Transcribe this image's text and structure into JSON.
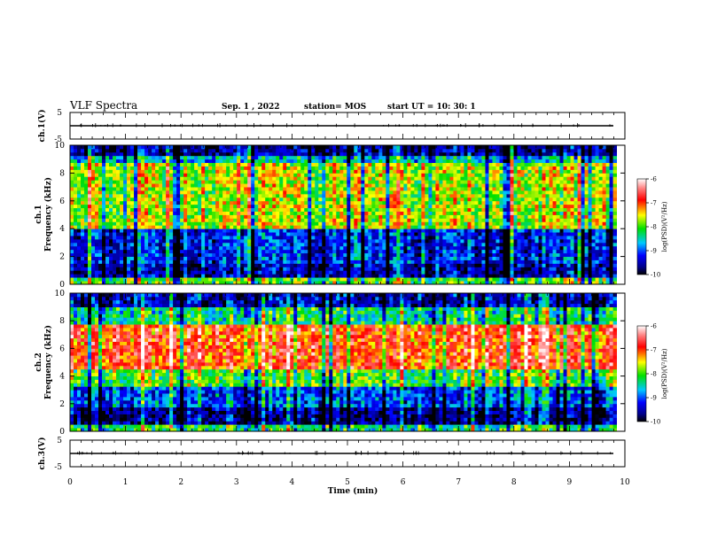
{
  "header": {
    "title": "VLF Spectra",
    "date": "Sep. 1 , 2022",
    "station": "station= MOS",
    "start": "start  UT =   10: 30: 1"
  },
  "chart_data": [
    {
      "type": "line",
      "panel": "ch1-waveform",
      "ylabel": "ch.1(V)",
      "ylim": [
        -5,
        5
      ],
      "yticks": [
        "5",
        "-5"
      ],
      "x": [
        0,
        10
      ],
      "values": [
        0,
        0
      ]
    },
    {
      "type": "heatmap",
      "panel": "ch1-spectrogram",
      "ylabel_line1": "ch.1",
      "ylabel_line2": "Frequency (kHz)",
      "ylim": [
        0,
        10
      ],
      "yticks": [
        "0",
        "2",
        "4",
        "6",
        "8",
        "10"
      ],
      "xlim": [
        0,
        9.85
      ],
      "colorbar": {
        "label": "log(PSD)(V²/Hz)",
        "range": [
          -10,
          -6
        ],
        "ticks": [
          "-6",
          "-7",
          "-8",
          "-9",
          "-10"
        ]
      },
      "bands": [
        {
          "f_low": 0,
          "f_high": 0.4,
          "log_psd": -8.0
        },
        {
          "f_low": 0.4,
          "f_high": 1.6,
          "log_psd": -9.5
        },
        {
          "f_low": 1.6,
          "f_high": 4.0,
          "log_psd": -9.2
        },
        {
          "f_low": 4.0,
          "f_high": 8.7,
          "log_psd": -7.7
        },
        {
          "f_low": 8.7,
          "f_high": 9.2,
          "log_psd": -8.6
        },
        {
          "f_low": 9.2,
          "f_high": 10,
          "log_psd": -9.6
        }
      ]
    },
    {
      "type": "heatmap",
      "panel": "ch2-spectrogram",
      "ylabel_line1": "ch.2",
      "ylabel_line2": "Frequency (kHz)",
      "ylim": [
        0,
        10
      ],
      "yticks": [
        "0",
        "2",
        "4",
        "6",
        "8",
        "10"
      ],
      "xlim": [
        0,
        9.85
      ],
      "colorbar": {
        "label": "log(PSD)(V²/Hz)",
        "range": [
          -10,
          -6
        ],
        "ticks": [
          "-6",
          "-7",
          "-8",
          "-9",
          "-10"
        ]
      },
      "bands": [
        {
          "f_low": 0,
          "f_high": 0.4,
          "log_psd": -8.2
        },
        {
          "f_low": 0.4,
          "f_high": 1.8,
          "log_psd": -9.6
        },
        {
          "f_low": 1.8,
          "f_high": 3.2,
          "log_psd": -9.0
        },
        {
          "f_low": 3.2,
          "f_high": 4.5,
          "log_psd": -8.0
        },
        {
          "f_low": 4.5,
          "f_high": 7.8,
          "log_psd": -6.9
        },
        {
          "f_low": 7.8,
          "f_high": 9.0,
          "log_psd": -8.3
        },
        {
          "f_low": 9.0,
          "f_high": 10,
          "log_psd": -9.4
        }
      ]
    },
    {
      "type": "line",
      "panel": "ch3-waveform",
      "ylabel": "ch.3(V)",
      "ylim": [
        -5,
        5
      ],
      "yticks": [
        "5",
        "-5"
      ],
      "x": [
        0,
        10
      ],
      "values": [
        0,
        0
      ]
    }
  ],
  "xaxis": {
    "label": "Time (min)",
    "range": [
      0,
      10
    ],
    "ticks": [
      "0",
      "1",
      "2",
      "3",
      "4",
      "5",
      "6",
      "7",
      "8",
      "9",
      "10"
    ]
  }
}
